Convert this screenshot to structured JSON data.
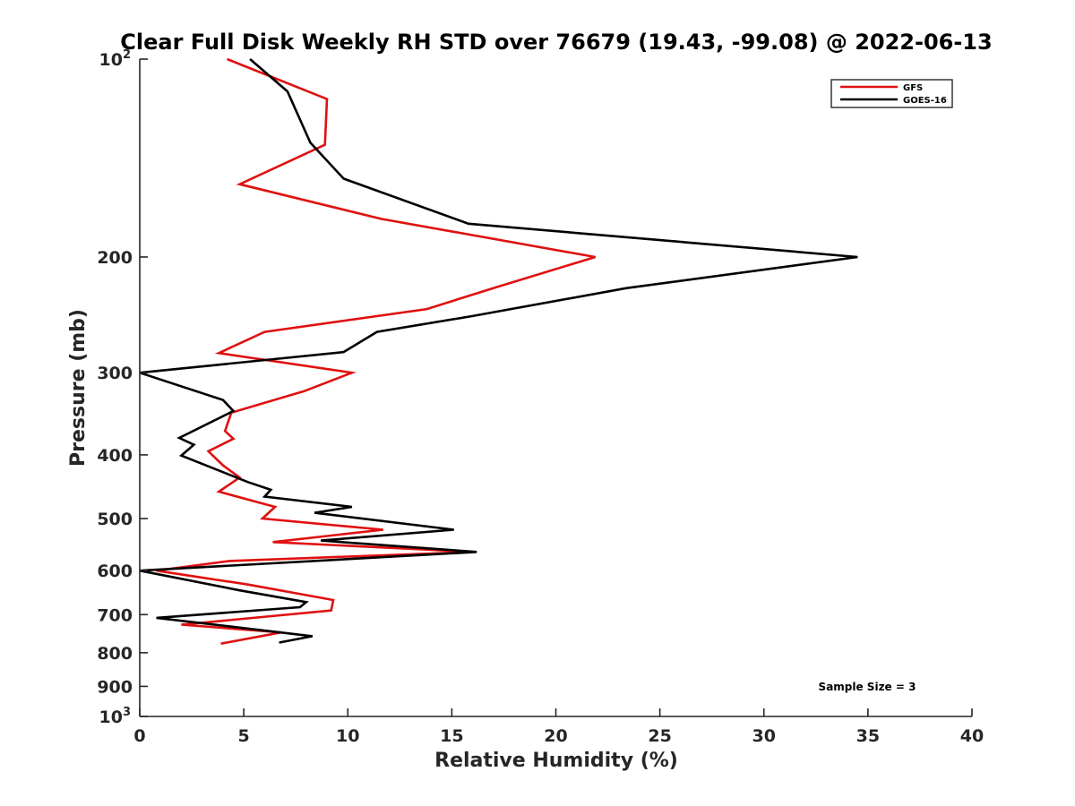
{
  "chart_data": {
    "type": "line",
    "title": "Clear Full Disk Weekly RH STD over 76679 (19.43, -99.08) @ 2022-06-13",
    "xlabel": "Relative Humidity (%)",
    "ylabel": "Pressure (mb)",
    "xlim": [
      0,
      40
    ],
    "ylim": [
      100,
      1000
    ],
    "yscale": "log",
    "y_reversed": true,
    "x_ticks": [
      "0",
      "5",
      "10",
      "15",
      "20",
      "25",
      "30",
      "35",
      "40"
    ],
    "y_ticks": [
      {
        "value": 100,
        "label": "10",
        "sup": "2"
      },
      {
        "value": 200,
        "label": "200"
      },
      {
        "value": 300,
        "label": "300"
      },
      {
        "value": 400,
        "label": "400"
      },
      {
        "value": 500,
        "label": "500"
      },
      {
        "value": 600,
        "label": "600"
      },
      {
        "value": 700,
        "label": "700"
      },
      {
        "value": 800,
        "label": "800"
      },
      {
        "value": 900,
        "label": "900"
      },
      {
        "value": 1000,
        "label": "10",
        "sup": "3"
      }
    ],
    "grid": false,
    "legend_position": "top-right",
    "annotation": "Sample Size = 3",
    "series": [
      {
        "name": "GFS",
        "color": "#e01010",
        "points": [
          [
            4.2,
            100
          ],
          [
            9.0,
            115
          ],
          [
            8.9,
            135
          ],
          [
            4.8,
            155
          ],
          [
            11.6,
            175
          ],
          [
            21.9,
            200
          ],
          [
            17.2,
            222
          ],
          [
            13.8,
            240
          ],
          [
            6.0,
            260
          ],
          [
            3.8,
            280
          ],
          [
            10.2,
            300
          ],
          [
            7.9,
            320
          ],
          [
            4.4,
            345
          ],
          [
            4.1,
            368
          ],
          [
            4.5,
            378
          ],
          [
            3.3,
            395
          ],
          [
            4.0,
            415
          ],
          [
            4.8,
            433
          ],
          [
            3.8,
            455
          ],
          [
            6.5,
            480
          ],
          [
            5.9,
            500
          ],
          [
            11.7,
            520
          ],
          [
            6.4,
            543
          ],
          [
            16.0,
            562
          ],
          [
            4.3,
            580
          ],
          [
            0.8,
            600
          ],
          [
            5.2,
            630
          ],
          [
            9.3,
            665
          ],
          [
            9.2,
            690
          ],
          [
            2.0,
            725
          ],
          [
            6.8,
            745
          ],
          [
            3.9,
            775
          ]
        ]
      },
      {
        "name": "GOES-16",
        "color": "#000000",
        "points": [
          [
            5.3,
            100
          ],
          [
            7.1,
            112
          ],
          [
            8.2,
            134
          ],
          [
            9.8,
            152
          ],
          [
            15.8,
            178
          ],
          [
            34.5,
            200
          ],
          [
            23.4,
            223
          ],
          [
            16.0,
            246
          ],
          [
            11.4,
            260
          ],
          [
            9.8,
            279
          ],
          [
            0.0,
            300
          ],
          [
            4.0,
            330
          ],
          [
            4.5,
            343
          ],
          [
            1.9,
            377
          ],
          [
            2.6,
            386
          ],
          [
            2.0,
            401
          ],
          [
            5.2,
            440
          ],
          [
            6.3,
            452
          ],
          [
            6.0,
            463
          ],
          [
            10.2,
            480
          ],
          [
            8.4,
            490
          ],
          [
            15.1,
            520
          ],
          [
            8.7,
            540
          ],
          [
            16.2,
            562
          ],
          [
            0.0,
            600
          ],
          [
            4.8,
            643
          ],
          [
            8.0,
            670
          ],
          [
            7.7,
            682
          ],
          [
            0.8,
            708
          ],
          [
            8.3,
            755
          ],
          [
            6.7,
            772
          ]
        ]
      }
    ]
  }
}
